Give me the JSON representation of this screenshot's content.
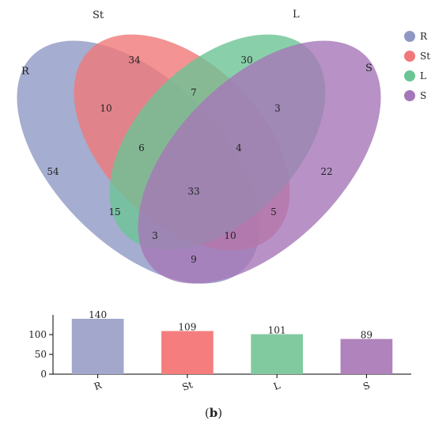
{
  "venn": {
    "sets": [
      {
        "key": "R",
        "label": "R",
        "color": "#8f98c4"
      },
      {
        "key": "St",
        "label": "St",
        "color": "#f07878"
      },
      {
        "key": "L",
        "label": "L",
        "color": "#6cc495"
      },
      {
        "key": "S",
        "label": "S",
        "color": "#a677b8"
      }
    ],
    "regions": {
      "R_only": "54",
      "St_only": "34",
      "L_only": "30",
      "S_only": "22",
      "R_St": "10",
      "St_L": "7",
      "L_S": "3",
      "R_St_L": "6",
      "St_L_S": "4",
      "all": "33",
      "R_L": "15",
      "St_S": "5",
      "R_L_S": "3",
      "R_St_S": "10",
      "R_S": "9"
    },
    "legend": [
      {
        "label": "R",
        "color": "#8f98c4"
      },
      {
        "label": "St",
        "color": "#f07878"
      },
      {
        "label": "L",
        "color": "#6cc495"
      },
      {
        "label": "S",
        "color": "#a677b8"
      }
    ]
  },
  "chart_data": {
    "type": "bar",
    "categories": [
      "R",
      "St",
      "L",
      "S"
    ],
    "values": [
      140,
      109,
      101,
      89
    ],
    "colors": [
      "#a2a7cb",
      "#f57d7d",
      "#81ca9f",
      "#b083bd"
    ],
    "ylim": [
      0,
      150
    ],
    "yticks": [
      0,
      50,
      100
    ],
    "grid": false,
    "xlabel": "",
    "ylabel": ""
  },
  "caption": {
    "open": "(",
    "letter": "b",
    "close": ")"
  }
}
